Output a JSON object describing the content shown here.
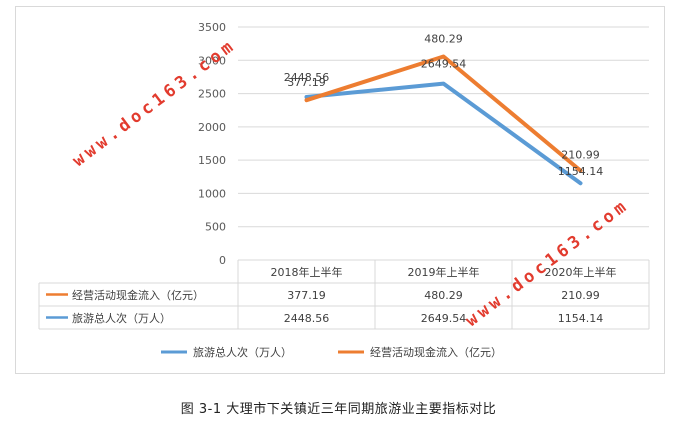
{
  "chart_data": {
    "type": "line",
    "title": "",
    "categories": [
      "2018年上半年",
      "2019年上半年",
      "2020年上半年"
    ],
    "series": [
      {
        "name": "经营活动现金流入（亿元）",
        "values": [
          377.19,
          480.29,
          210.99
        ],
        "color": "#ed7d31"
      },
      {
        "name": "旅游总人次（万人）",
        "values": [
          2448.56,
          2649.54,
          1154.14
        ],
        "color": "#5b9bd5"
      }
    ],
    "yticks": [
      "0",
      "500",
      "1000",
      "1500",
      "2000",
      "2500",
      "3000",
      "3500"
    ],
    "ylim": [
      0,
      3500
    ],
    "grid": true,
    "legend_position": "bottom",
    "data_table": {
      "header": [
        "2018年上半年",
        "2019年上半年",
        "2020年上半年"
      ],
      "rows": [
        {
          "label": "经营活动现金流入（亿元）",
          "cells": [
            "377.19",
            "480.29",
            "210.99"
          ]
        },
        {
          "label": "旅游总人次（万人）",
          "cells": [
            "2448.56",
            "2649.54",
            "1154.14"
          ]
        }
      ]
    },
    "legend": [
      "旅游总人次（万人）",
      "经营活动现金流入（亿元）"
    ],
    "point_labels": {
      "cash": [
        "377.19",
        "480.29",
        "210.99"
      ],
      "tourism": [
        "2448.56",
        "2649.54",
        "1154.14"
      ]
    }
  },
  "watermark": "www.doc163.com",
  "caption": "图 3-1  大理市下关镇近三年同期旅游业主要指标对比"
}
